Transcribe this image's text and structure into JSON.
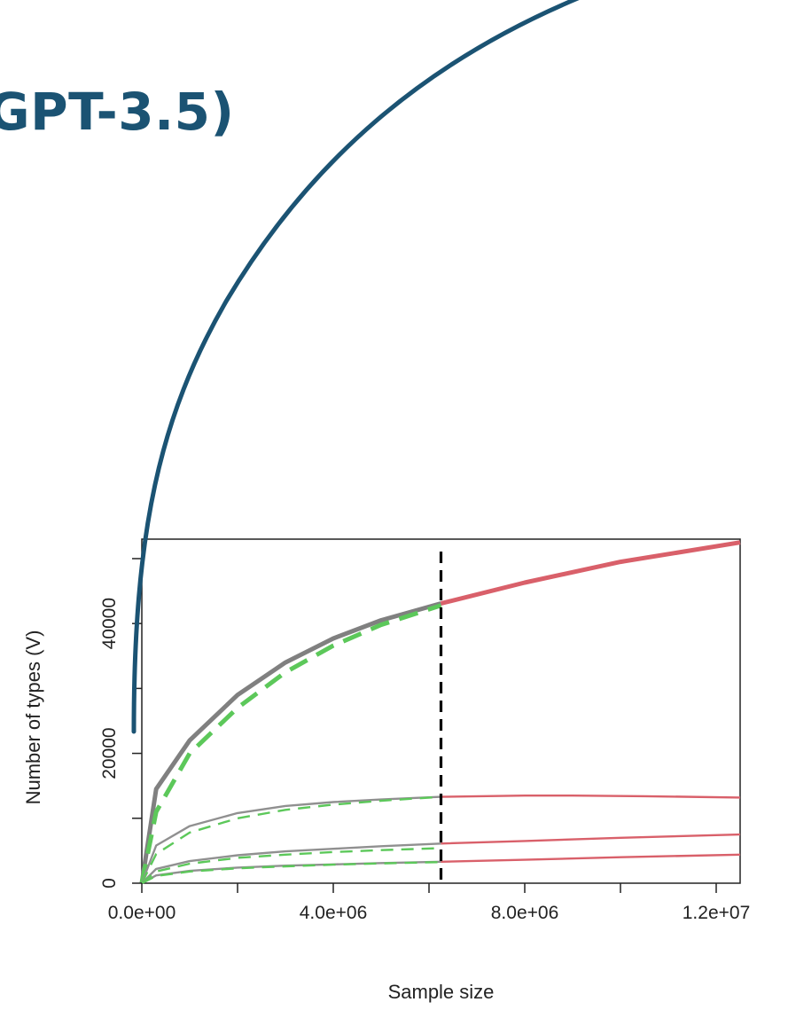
{
  "slide": {
    "title": "GPT-3.5)",
    "accent_color": "#1b5373"
  },
  "chart_data": {
    "type": "line",
    "title": "",
    "xlabel": "Sample size",
    "ylabel": "Number of types (V)",
    "xlim": [
      0,
      12500000
    ],
    "ylim": [
      0,
      53000
    ],
    "x_ticks": [
      0,
      2000000,
      4000000,
      6000000,
      8000000,
      10000000,
      12000000
    ],
    "x_tick_labels": [
      {
        "value": 0,
        "label": "0.0e+00"
      },
      {
        "value": 4000000,
        "label": "4.0e+06"
      },
      {
        "value": 8000000,
        "label": "8.0e+06"
      },
      {
        "value": 12000000,
        "label": "1.2e+07"
      }
    ],
    "y_ticks": [
      0,
      10000,
      20000,
      30000,
      40000,
      50000
    ],
    "y_tick_labels": [
      {
        "value": 0,
        "label": "0"
      },
      {
        "value": 20000,
        "label": "20000"
      },
      {
        "value": 40000,
        "label": "40000"
      }
    ],
    "reference_line": {
      "x": 6250000,
      "style": "dashed",
      "color": "#000000"
    },
    "series": [
      {
        "role": "observed",
        "color": "#808080",
        "style": "solid",
        "weight": "heavy",
        "points": [
          [
            0,
            0
          ],
          [
            300000,
            14500
          ],
          [
            1000000,
            22000
          ],
          [
            2000000,
            29000
          ],
          [
            3000000,
            34000
          ],
          [
            4000000,
            37700
          ],
          [
            5000000,
            40500
          ],
          [
            6250000,
            43100
          ]
        ]
      },
      {
        "role": "model fit",
        "color": "#5cc85a",
        "style": "dashed",
        "weight": "heavy",
        "points": [
          [
            0,
            0
          ],
          [
            300000,
            11000
          ],
          [
            1000000,
            20000
          ],
          [
            2000000,
            27000
          ],
          [
            3000000,
            32500
          ],
          [
            4000000,
            36600
          ],
          [
            5000000,
            39800
          ],
          [
            6250000,
            42800
          ]
        ]
      },
      {
        "role": "extrapolation",
        "color": "#d9606a",
        "style": "solid",
        "weight": "heavy",
        "points": [
          [
            6250000,
            43100
          ],
          [
            8000000,
            46300
          ],
          [
            10000000,
            49500
          ],
          [
            12500000,
            52500
          ]
        ]
      },
      {
        "role": "observed",
        "color": "#909090",
        "style": "solid",
        "weight": "thin",
        "points": [
          [
            0,
            0
          ],
          [
            300000,
            5800
          ],
          [
            1000000,
            8800
          ],
          [
            2000000,
            10800
          ],
          [
            3000000,
            11900
          ],
          [
            4000000,
            12500
          ],
          [
            5000000,
            12900
          ],
          [
            6250000,
            13300
          ]
        ]
      },
      {
        "role": "model fit",
        "color": "#5cc85a",
        "style": "dashed",
        "weight": "thin",
        "points": [
          [
            0,
            0
          ],
          [
            300000,
            4500
          ],
          [
            1000000,
            7800
          ],
          [
            2000000,
            10000
          ],
          [
            3000000,
            11300
          ],
          [
            4000000,
            12100
          ],
          [
            5000000,
            12700
          ],
          [
            6250000,
            13300
          ]
        ]
      },
      {
        "role": "extrapolation",
        "color": "#d9606a",
        "style": "solid",
        "weight": "thin",
        "points": [
          [
            6250000,
            13300
          ],
          [
            8000000,
            13500
          ],
          [
            9000000,
            13500
          ],
          [
            10500000,
            13400
          ],
          [
            12500000,
            13200
          ]
        ]
      },
      {
        "role": "observed",
        "color": "#909090",
        "style": "solid",
        "weight": "thin",
        "points": [
          [
            0,
            0
          ],
          [
            300000,
            2200
          ],
          [
            1000000,
            3400
          ],
          [
            2000000,
            4300
          ],
          [
            3000000,
            4900
          ],
          [
            4000000,
            5300
          ],
          [
            5000000,
            5700
          ],
          [
            6250000,
            6100
          ]
        ]
      },
      {
        "role": "model fit",
        "color": "#5cc85a",
        "style": "dashed",
        "weight": "thin",
        "points": [
          [
            0,
            0
          ],
          [
            300000,
            1800
          ],
          [
            1000000,
            3000
          ],
          [
            2000000,
            3900
          ],
          [
            3000000,
            4400
          ],
          [
            4000000,
            4800
          ],
          [
            5000000,
            5100
          ],
          [
            6250000,
            5400
          ]
        ]
      },
      {
        "role": "extrapolation",
        "color": "#d9606a",
        "style": "solid",
        "weight": "thin",
        "points": [
          [
            6250000,
            6100
          ],
          [
            8000000,
            6500
          ],
          [
            10000000,
            7000
          ],
          [
            12500000,
            7500
          ]
        ]
      },
      {
        "role": "observed",
        "color": "#909090",
        "style": "solid",
        "weight": "thin",
        "points": [
          [
            0,
            0
          ],
          [
            300000,
            1200
          ],
          [
            1000000,
            1900
          ],
          [
            2000000,
            2400
          ],
          [
            3000000,
            2700
          ],
          [
            4000000,
            2900
          ],
          [
            5000000,
            3100
          ],
          [
            6250000,
            3300
          ]
        ]
      },
      {
        "role": "model fit",
        "color": "#5cc85a",
        "style": "dashed",
        "weight": "thin",
        "points": [
          [
            0,
            0
          ],
          [
            300000,
            1100
          ],
          [
            1000000,
            1800
          ],
          [
            2000000,
            2300
          ],
          [
            3000000,
            2600
          ],
          [
            4000000,
            2850
          ],
          [
            5000000,
            3050
          ],
          [
            6250000,
            3250
          ]
        ]
      },
      {
        "role": "extrapolation",
        "color": "#d9606a",
        "style": "solid",
        "weight": "thin",
        "points": [
          [
            6250000,
            3300
          ],
          [
            8000000,
            3600
          ],
          [
            10000000,
            4000
          ],
          [
            12500000,
            4400
          ]
        ]
      }
    ]
  }
}
